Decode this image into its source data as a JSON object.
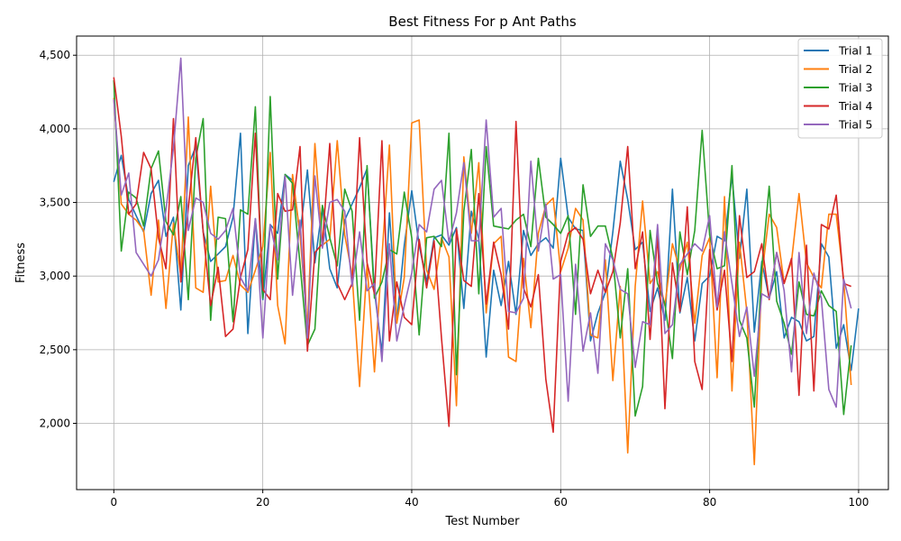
{
  "chart_data": {
    "type": "line",
    "title": "Best Fitness For p Ant Paths",
    "xlabel": "Test Number",
    "ylabel": "Fitness",
    "xlim": [
      -5,
      104
    ],
    "ylim": [
      1550,
      4630
    ],
    "xticks": [
      0,
      20,
      40,
      60,
      80,
      100
    ],
    "yticks": [
      2000,
      2500,
      3000,
      3500,
      4000,
      4500
    ],
    "ytick_labels": [
      "2,000",
      "2,500",
      "3,000",
      "3,500",
      "4,000",
      "4,500"
    ],
    "grid": true,
    "legend_position": "top-right",
    "series": [
      {
        "name": "Trial 1",
        "color": "#1f77b4",
        "values": [
          3640,
          3820,
          3520,
          3410,
          3300,
          3560,
          3650,
          3270,
          3400,
          2770,
          3750,
          3880,
          3300,
          3100,
          3150,
          3200,
          3400,
          3970,
          2610,
          3390,
          2840,
          3350,
          3290,
          3690,
          3650,
          3280,
          3720,
          3090,
          3470,
          3050,
          2920,
          3380,
          3490,
          3600,
          3730,
          2900,
          2480,
          3430,
          2690,
          3210,
          3580,
          3210,
          2960,
          3260,
          3280,
          3210,
          3330,
          2780,
          3440,
          3250,
          2450,
          3040,
          2800,
          3100,
          2740,
          3310,
          3140,
          3220,
          3260,
          3190,
          3800,
          3400,
          3320,
          3310,
          2560,
          2750,
          2890,
          3300,
          3780,
          3520,
          3180,
          3230,
          2760,
          2920,
          2700,
          3590,
          2750,
          2990,
          2560,
          2950,
          3000,
          3270,
          3240,
          3680,
          3120,
          3590,
          2620,
          3100,
          2850,
          3030,
          2580,
          2720,
          2690,
          2560,
          2590,
          3220,
          3130,
          2510,
          2670,
          2360,
          2780
        ]
      },
      {
        "name": "Trial 2",
        "color": "#ff7f0e",
        "values": [
          4210,
          3490,
          3420,
          3380,
          3310,
          2870,
          3380,
          2780,
          3360,
          3000,
          4080,
          2920,
          2890,
          3610,
          2960,
          2970,
          3140,
          2940,
          2890,
          3040,
          3200,
          3840,
          2800,
          2540,
          3690,
          3280,
          2650,
          3900,
          3210,
          3250,
          3920,
          3280,
          3010,
          2250,
          3080,
          2350,
          3130,
          3890,
          2680,
          2990,
          4040,
          4060,
          3040,
          2910,
          3260,
          3130,
          2120,
          3810,
          3290,
          3770,
          2750,
          3220,
          3270,
          2450,
          2420,
          3120,
          2650,
          3290,
          3480,
          3530,
          3030,
          3190,
          3460,
          3380,
          2600,
          2580,
          3110,
          2290,
          2930,
          1800,
          2930,
          3510,
          2950,
          3030,
          2800,
          3220,
          3040,
          3230,
          2680,
          3140,
          3260,
          2310,
          3540,
          2220,
          3230,
          2760,
          1720,
          3000,
          3420,
          3330,
          2950,
          3100,
          3560,
          3090,
          2990,
          2920,
          3420,
          3420,
          2970,
          2260
        ]
      },
      {
        "name": "Trial 3",
        "color": "#2ca02c",
        "values": [
          4330,
          3170,
          3570,
          3530,
          3340,
          3730,
          3850,
          3370,
          3280,
          3540,
          2840,
          3800,
          4070,
          2700,
          3400,
          3390,
          2690,
          3450,
          3420,
          4150,
          2850,
          4220,
          2980,
          3690,
          3630,
          3080,
          2530,
          2640,
          3480,
          3260,
          3070,
          3590,
          3440,
          2700,
          3750,
          2850,
          2960,
          3180,
          3150,
          3570,
          3260,
          2600,
          3260,
          3270,
          3200,
          3970,
          2330,
          3440,
          3860,
          2880,
          3880,
          3340,
          3330,
          3320,
          3380,
          3420,
          3200,
          3800,
          3400,
          3350,
          3290,
          3410,
          2740,
          3620,
          3270,
          3340,
          3340,
          3120,
          2580,
          3050,
          2050,
          2250,
          3310,
          2950,
          2810,
          2440,
          3300,
          3010,
          3310,
          3990,
          3280,
          3050,
          3070,
          3750,
          2700,
          2580,
          2110,
          3060,
          3610,
          2830,
          2680,
          2470,
          2960,
          2740,
          2730,
          2900,
          2800,
          2760,
          2060,
          2530
        ]
      },
      {
        "name": "Trial 4",
        "color": "#d62728",
        "values": [
          4350,
          3950,
          3420,
          3490,
          3840,
          3730,
          3260,
          3050,
          4070,
          2960,
          3460,
          3940,
          3300,
          2800,
          3060,
          2590,
          2640,
          2990,
          3180,
          3970,
          2910,
          2840,
          3560,
          3440,
          3450,
          3880,
          2490,
          3160,
          3220,
          3900,
          2950,
          2840,
          2950,
          3940,
          3090,
          2880,
          3920,
          2560,
          2960,
          2720,
          2670,
          3250,
          2920,
          3240,
          2580,
          1980,
          3320,
          2970,
          2930,
          3560,
          2810,
          3230,
          3010,
          2640,
          4050,
          2920,
          2790,
          3010,
          2300,
          1940,
          3100,
          3290,
          3330,
          3250,
          2880,
          3040,
          2890,
          3030,
          3360,
          3880,
          3050,
          3300,
          2570,
          3280,
          2100,
          3090,
          2760,
          3470,
          2420,
          2230,
          3180,
          2770,
          3040,
          2420,
          3410,
          2990,
          3030,
          3220,
          2840,
          3160,
          2950,
          3120,
          2190,
          3210,
          2220,
          3350,
          3320,
          3550,
          2950,
          2930
        ]
      },
      {
        "name": "Trial 5",
        "color": "#9467bd",
        "values": [
          4200,
          3550,
          3700,
          3160,
          3080,
          3000,
          3110,
          3450,
          3870,
          4480,
          3310,
          3530,
          3500,
          3290,
          3250,
          3310,
          3460,
          2990,
          2900,
          3390,
          2580,
          3350,
          3110,
          3680,
          2870,
          3380,
          2580,
          3680,
          3190,
          3500,
          3520,
          3440,
          2930,
          3300,
          2900,
          2950,
          2420,
          3220,
          2560,
          2800,
          3020,
          3350,
          3300,
          3590,
          3650,
          3230,
          3430,
          3770,
          3240,
          3240,
          4060,
          3400,
          3460,
          2760,
          2750,
          2850,
          3780,
          3170,
          3490,
          2980,
          3010,
          2150,
          3080,
          2490,
          2750,
          2340,
          3220,
          3110,
          2910,
          2880,
          2380,
          2690,
          2670,
          3350,
          2610,
          2670,
          3080,
          3150,
          3220,
          3170,
          3410,
          2790,
          3300,
          2950,
          2590,
          2790,
          2320,
          2880,
          2850,
          3160,
          2900,
          2350,
          3160,
          2610,
          3020,
          2850,
          2230,
          2110,
          2980,
          2780
        ]
      }
    ]
  }
}
